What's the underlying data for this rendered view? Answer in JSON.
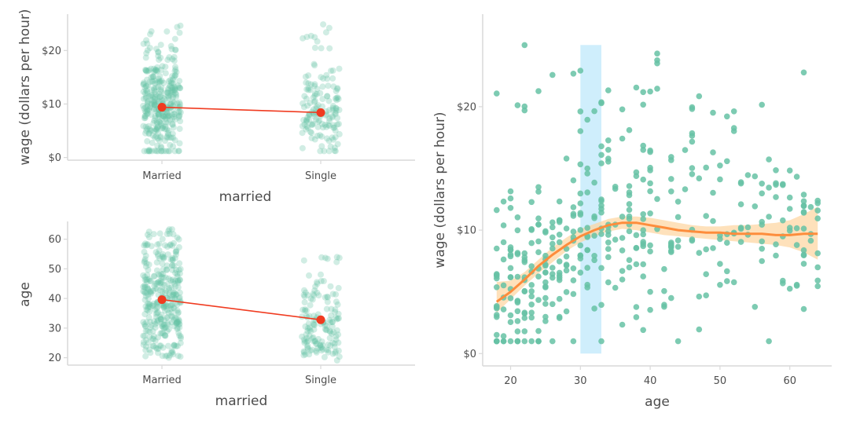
{
  "chart_data": [
    {
      "type": "scatter",
      "panel": "top-left",
      "subtype": "jittered strip with group means",
      "xlabel": "married",
      "ylabel": "wage (dollars per hour)",
      "categories": [
        "Married",
        "Single"
      ],
      "ylim": [
        -0.5,
        26.8
      ],
      "yticks": [
        0,
        10,
        20
      ],
      "ytick_labels": [
        "$0",
        "$10",
        "$20"
      ],
      "means": [
        9.4,
        8.4
      ],
      "point_color": "#66c2a5",
      "mean_color": "#f03b20",
      "grid": false
    },
    {
      "type": "scatter",
      "panel": "bottom-left",
      "subtype": "jittered strip with group means",
      "xlabel": "married",
      "ylabel": "age",
      "categories": [
        "Married",
        "Single"
      ],
      "ylim": [
        17.5,
        66
      ],
      "yticks": [
        20,
        30,
        40,
        50,
        60
      ],
      "ytick_labels": [
        "20",
        "30",
        "40",
        "50",
        "60"
      ],
      "means": [
        39.6,
        32.8
      ],
      "point_color": "#66c2a5",
      "mean_color": "#f03b20",
      "grid": false
    },
    {
      "type": "scatter",
      "panel": "right",
      "xlabel": "age",
      "ylabel": "wage (dollars per hour)",
      "xlim": [
        16,
        66
      ],
      "ylim": [
        -1,
        27.5
      ],
      "xticks": [
        20,
        30,
        40,
        50,
        60
      ],
      "xtick_labels": [
        "20",
        "30",
        "40",
        "50",
        "60"
      ],
      "yticks": [
        0,
        10,
        20
      ],
      "ytick_labels": [
        "$0",
        "$10",
        "$20"
      ],
      "point_color": "#66c2a5",
      "smooth_color": "#fd8d3c",
      "band_color": "#fdd49e",
      "highlight": {
        "x": [
          30,
          33
        ],
        "y": [
          0,
          25
        ],
        "color": "#bfe8fb"
      },
      "smooth": {
        "x": [
          18,
          20,
          22,
          24,
          26,
          28,
          30,
          32,
          34,
          36,
          38,
          40,
          42,
          44,
          46,
          48,
          50,
          52,
          54,
          56,
          58,
          60,
          62,
          64
        ],
        "y": [
          4.2,
          5.0,
          6.0,
          7.1,
          8.0,
          8.8,
          9.5,
          10.0,
          10.4,
          10.6,
          10.6,
          10.4,
          10.2,
          10.0,
          9.9,
          9.8,
          9.8,
          9.7,
          9.7,
          9.7,
          9.6,
          9.6,
          9.7,
          9.7
        ],
        "lower": [
          3.3,
          4.4,
          5.5,
          6.5,
          7.4,
          8.3,
          9.0,
          9.5,
          9.9,
          10.1,
          10.0,
          9.8,
          9.6,
          9.5,
          9.4,
          9.3,
          9.2,
          9.1,
          9.0,
          8.9,
          8.8,
          8.6,
          8.2,
          7.6
        ],
        "upper": [
          5.8,
          5.9,
          6.6,
          7.6,
          8.6,
          9.4,
          10.1,
          10.5,
          10.9,
          11.1,
          11.1,
          11.0,
          10.8,
          10.6,
          10.4,
          10.3,
          10.3,
          10.4,
          10.4,
          10.5,
          10.6,
          10.8,
          11.3,
          11.9
        ]
      },
      "grid": false
    }
  ]
}
